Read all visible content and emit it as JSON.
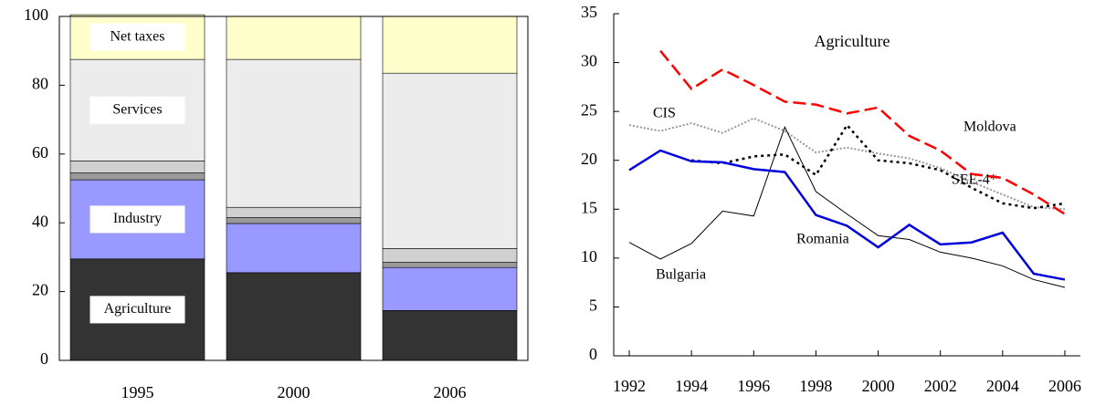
{
  "chart_data": [
    {
      "type": "stacked_bar",
      "categories": [
        "1995",
        "2000",
        "2006"
      ],
      "series": [
        {
          "name": "Agriculture",
          "color": "#333333",
          "values": [
            29.5,
            25.5,
            14.5
          ]
        },
        {
          "name": "Industry",
          "color": "#9999ff",
          "values": [
            23,
            14.3,
            12.5
          ]
        },
        {
          "color": "#9a9a9a",
          "values": [
            2,
            1.7,
            1.5
          ]
        },
        {
          "color": "#d0d0d0",
          "values": [
            3.5,
            3,
            4
          ]
        },
        {
          "name": "Services",
          "color": "#ececec",
          "values": [
            29.5,
            43,
            51
          ]
        },
        {
          "name": "Net taxes",
          "color": "#ffffcc",
          "values": [
            13,
            12.5,
            16.5
          ]
        }
      ],
      "ylim": [
        0,
        100
      ],
      "yticks": [
        0,
        20,
        40,
        60,
        80,
        100
      ]
    },
    {
      "type": "line",
      "title": "Agriculture",
      "x": [
        1992,
        1993,
        1994,
        1995,
        1996,
        1997,
        1998,
        1999,
        2000,
        2001,
        2002,
        2003,
        2004,
        2005,
        2006
      ],
      "series": [
        {
          "name": "CIS",
          "color": "#999999",
          "dash": "2,2",
          "width": 2,
          "values": [
            23.6,
            23,
            23.8,
            22.8,
            24.3,
            23,
            20.8,
            21.3,
            20.7,
            20.2,
            19.2,
            17.8,
            16.5,
            15.2,
            15
          ]
        },
        {
          "name": "Bulgaria",
          "color": "#000000",
          "width": 1,
          "values": [
            11.6,
            9.9,
            11.5,
            14.8,
            14.3,
            23.4,
            16.8,
            14.5,
            12.3,
            11.9,
            10.6,
            10,
            9.2,
            7.8,
            7
          ]
        },
        {
          "name": "SEE-4*",
          "color": "#000000",
          "dash": "3,4",
          "width": 2.5,
          "values": [
            null,
            null,
            20,
            19.7,
            20.4,
            20.6,
            18.5,
            23.6,
            20,
            19.7,
            19,
            17.2,
            15.6,
            15.1,
            15.6
          ]
        },
        {
          "name": "Romania",
          "color": "#0000dd",
          "width": 2.5,
          "values": [
            19,
            21,
            19.9,
            19.8,
            19.1,
            18.8,
            14.4,
            13.3,
            11.1,
            13.4,
            11.4,
            11.6,
            12.6,
            8.4,
            7.8
          ]
        },
        {
          "name": "Moldova",
          "color": "#ff0000",
          "dash": "14,6",
          "width": 2.5,
          "values": [
            null,
            31.2,
            27.3,
            29.3,
            27.7,
            26,
            25.7,
            24.8,
            25.4,
            22.5,
            21,
            18.6,
            18.2,
            16.5,
            14.5
          ]
        }
      ],
      "xlim": [
        1991.5,
        2006.5
      ],
      "xticks": [
        1992,
        1994,
        1996,
        1998,
        2000,
        2002,
        2004,
        2006
      ],
      "ylim": [
        0,
        35
      ],
      "yticks": [
        0,
        5,
        10,
        15,
        20,
        25,
        30,
        35
      ]
    }
  ]
}
